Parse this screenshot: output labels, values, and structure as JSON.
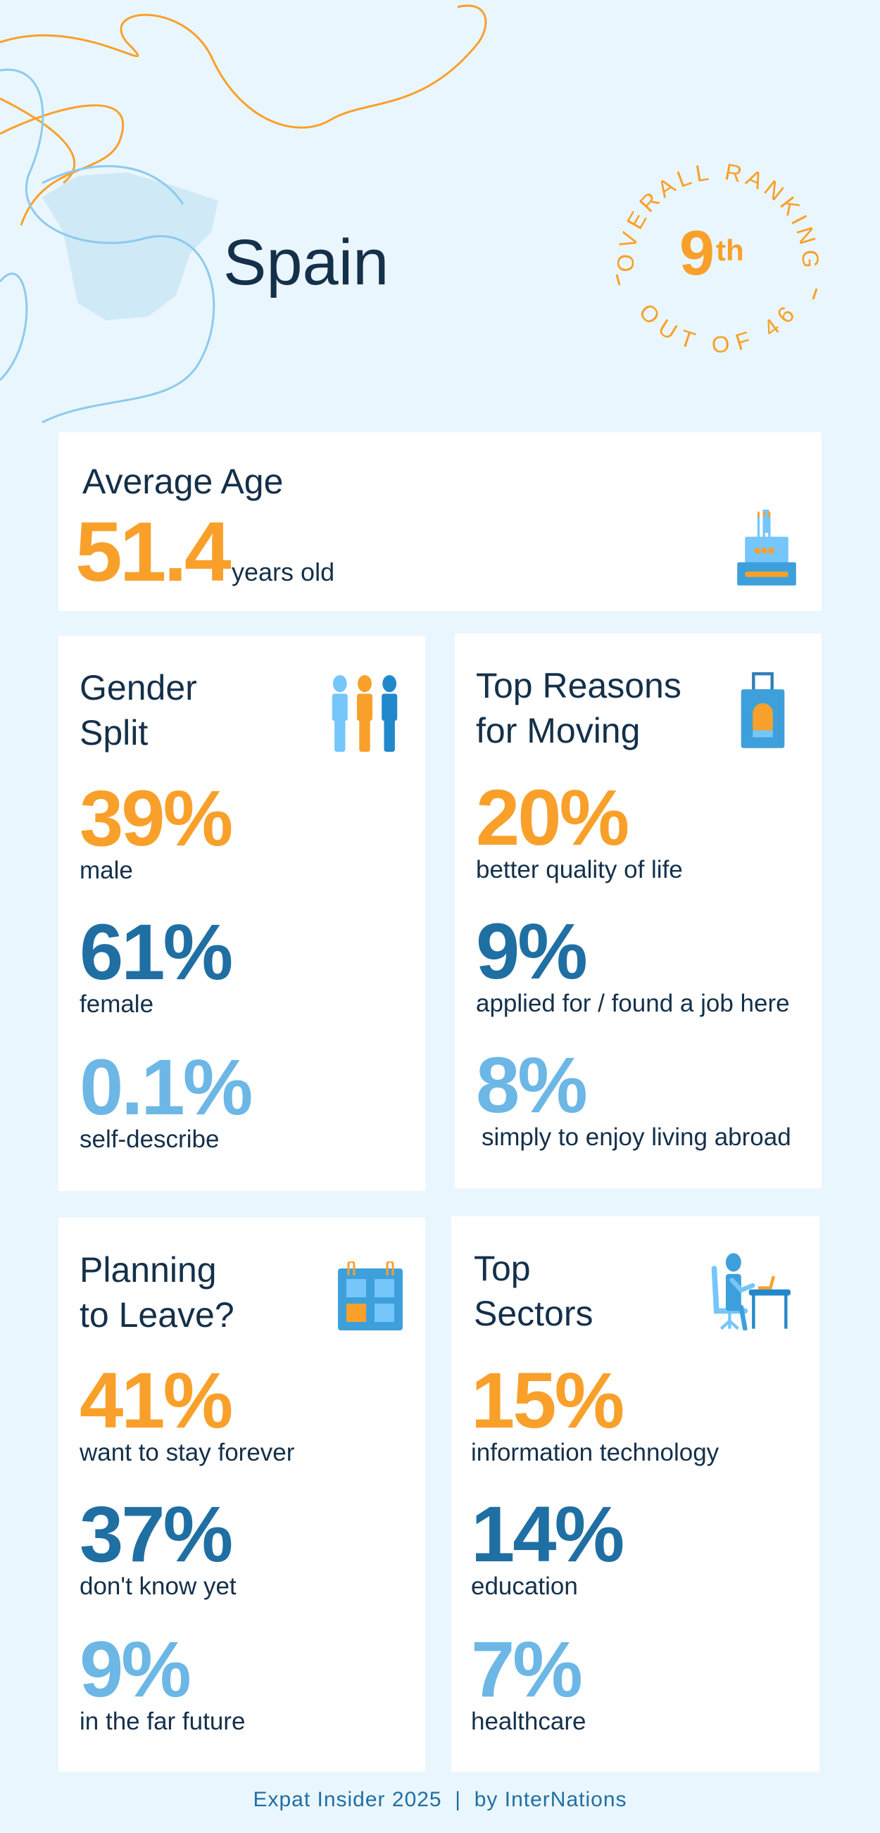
{
  "header": {
    "country": "Spain",
    "badge": {
      "top_text": "OVERALL RANKING",
      "rank": "9",
      "rank_suffix": "th",
      "bottom_text": "OUT OF 46"
    }
  },
  "average_age": {
    "title": "Average Age",
    "value": "51.4",
    "unit": "years old",
    "icon": "birthday-cake-icon"
  },
  "gender": {
    "title_line1": "Gender",
    "title_line2": "Split",
    "icon": "people-icon",
    "stats": [
      {
        "value": "39%",
        "label": "male"
      },
      {
        "value": "61%",
        "label": "female"
      },
      {
        "value": "0.1%",
        "label": "self-describe"
      }
    ]
  },
  "reasons": {
    "title_line1": "Top Reasons",
    "title_line2": "for Moving",
    "icon": "suitcase-icon",
    "stats": [
      {
        "value": "20%",
        "label": "better quality of life"
      },
      {
        "value": "9%",
        "label": "applied for / found a job here"
      },
      {
        "value": "8%",
        "label": "simply to enjoy living abroad"
      }
    ]
  },
  "planning": {
    "title_line1": "Planning",
    "title_line2": "to Leave?",
    "icon": "calendar-icon",
    "stats": [
      {
        "value": "41%",
        "label": "want to stay forever"
      },
      {
        "value": "37%",
        "label": "don't know yet"
      },
      {
        "value": "9%",
        "label": "in the far future"
      }
    ]
  },
  "sectors": {
    "title_line1": "Top",
    "title_line2": "Sectors",
    "icon": "desk-worker-icon",
    "stats": [
      {
        "value": "15%",
        "label": "information technology"
      },
      {
        "value": "14%",
        "label": "education"
      },
      {
        "value": "7%",
        "label": "healthcare"
      }
    ]
  },
  "footer": {
    "text": "Expat Insider 2025  |  by InterNations"
  },
  "colors": {
    "orange": "#f9a02a",
    "dark_blue": "#1f6fa3",
    "light_blue": "#6cb7e6",
    "text": "#14304a",
    "background": "#eaf6fd"
  }
}
